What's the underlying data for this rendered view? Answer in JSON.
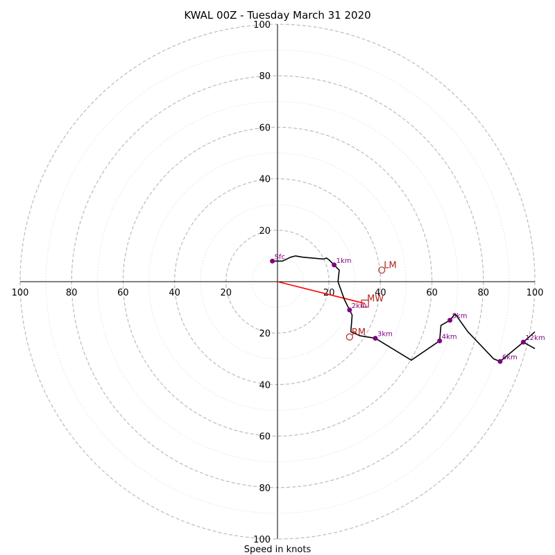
{
  "chart_data": {
    "type": "hodograph",
    "title": "KWAL 00Z - Tuesday March 31 2020",
    "xlabel": "Speed in knots",
    "axis_range": [
      -100,
      100
    ],
    "rings_dashed": [
      20,
      40,
      60,
      80,
      100
    ],
    "rings_dotted": [
      10,
      30,
      50,
      70,
      90
    ],
    "tick_labels": [
      "20",
      "40",
      "60",
      "80",
      "100"
    ],
    "hodograph": [
      {
        "u": -2,
        "v": 8
      },
      {
        "u": 2,
        "v": 8
      },
      {
        "u": 5,
        "v": 9.5
      },
      {
        "u": 7,
        "v": 10
      },
      {
        "u": 10,
        "v": 9.5
      },
      {
        "u": 18,
        "v": 8.8
      },
      {
        "u": 19,
        "v": 9.2
      },
      {
        "u": 20,
        "v": 8.5
      },
      {
        "u": 22,
        "v": 6.5
      },
      {
        "u": 24,
        "v": 4.5
      },
      {
        "u": 23.5,
        "v": 0
      },
      {
        "u": 26,
        "v": -7
      },
      {
        "u": 28,
        "v": -11
      },
      {
        "u": 29,
        "v": -13
      },
      {
        "u": 28.5,
        "v": -19.5
      },
      {
        "u": 32,
        "v": -21
      },
      {
        "u": 38,
        "v": -22
      },
      {
        "u": 52,
        "v": -30.5
      },
      {
        "u": 63,
        "v": -23
      },
      {
        "u": 63.5,
        "v": -17
      },
      {
        "u": 67,
        "v": -15
      },
      {
        "u": 69,
        "v": -12.5
      },
      {
        "u": 74,
        "v": -19.5
      },
      {
        "u": 84,
        "v": -30
      },
      {
        "u": 86.5,
        "v": -31
      },
      {
        "u": 95.5,
        "v": -23.5
      },
      {
        "u": 100,
        "v": -19.5
      }
    ],
    "hodograph_tail": [
      {
        "u": 95.5,
        "v": -23.5
      },
      {
        "u": 100,
        "v": -26
      }
    ],
    "height_markers": [
      {
        "label": "Sfc",
        "u": -2,
        "v": 8
      },
      {
        "label": "1km",
        "u": 22,
        "v": 6.5
      },
      {
        "label": "2km",
        "u": 28,
        "v": -11
      },
      {
        "label": "3km",
        "u": 38,
        "v": -22
      },
      {
        "label": "4km",
        "u": 63,
        "v": -23
      },
      {
        "label": "5km",
        "u": 67,
        "v": -15
      },
      {
        "label": "6km",
        "u": 86.5,
        "v": -31
      },
      {
        "label": "12km",
        "u": 95.5,
        "v": -23.5
      }
    ],
    "storm_motion": [
      {
        "label": "LM",
        "u": 40.5,
        "v": 4.5,
        "marker": "circle"
      },
      {
        "label": "RM",
        "u": 28,
        "v": -21.5,
        "marker": "circle"
      },
      {
        "label": "MW",
        "u": 34,
        "v": -8.5,
        "marker": "square"
      }
    ],
    "shear_vector": {
      "from": {
        "u": 0,
        "v": 0
      },
      "to": {
        "u": 34,
        "v": -8.5
      }
    },
    "colors": {
      "hodograph": "#000000",
      "markers": "#800080",
      "storm_motion": "#b22222",
      "shear_vector": "#ff0000",
      "rings": "#bbbbbb",
      "axes": "#000000"
    }
  }
}
